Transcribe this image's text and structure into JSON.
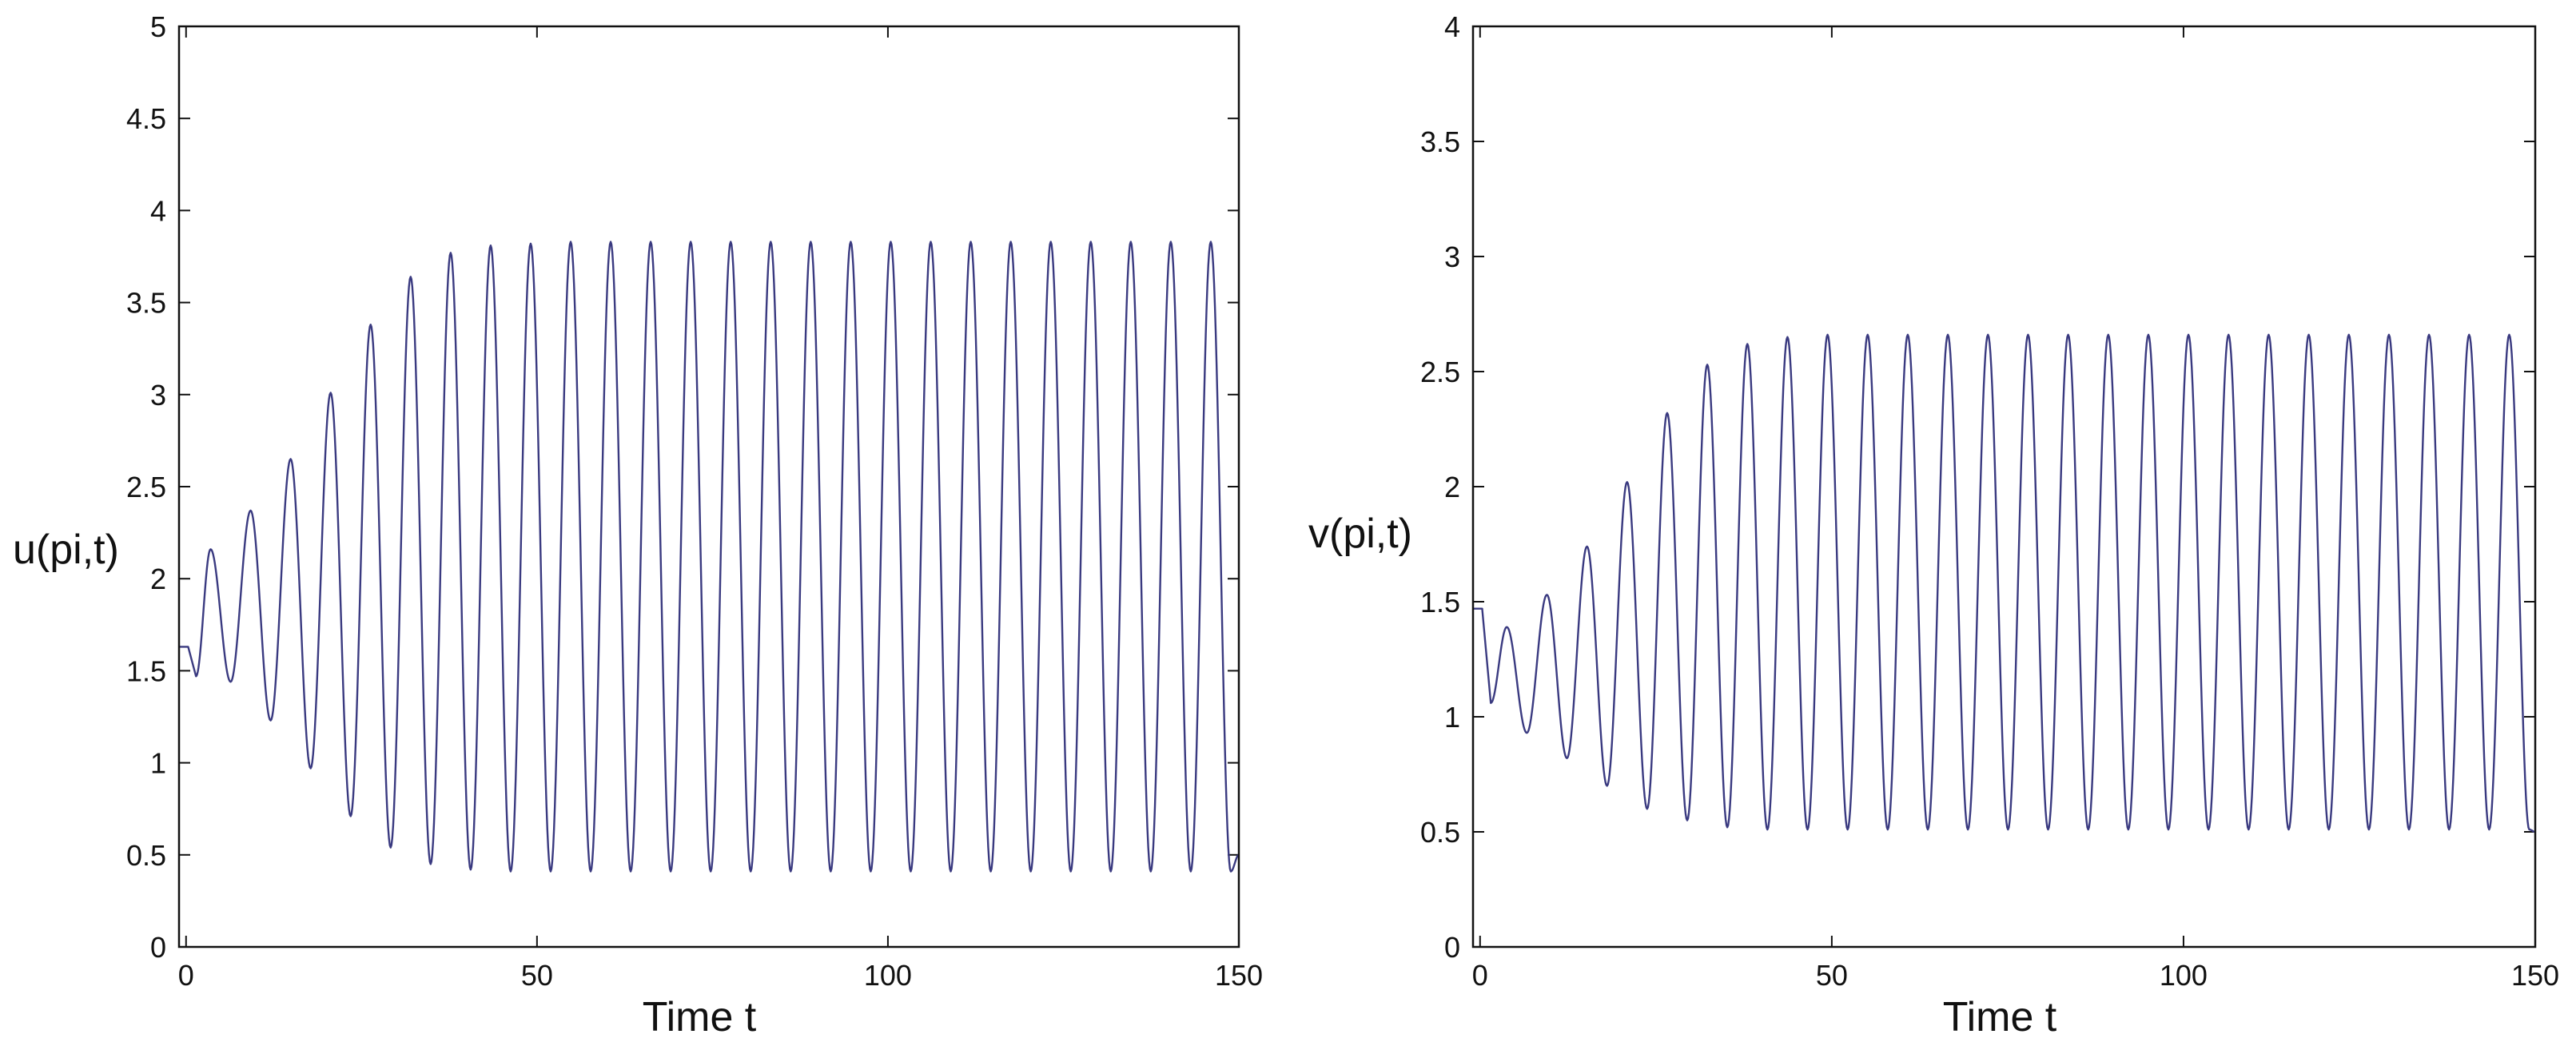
{
  "chart_data": [
    {
      "type": "line",
      "xlabel": "Time t",
      "ylabel": "u(pi,t)",
      "xlim": [
        -1,
        150
      ],
      "ylim": [
        0,
        5
      ],
      "xticks": [
        0,
        50,
        100,
        150
      ],
      "xtick_labels": [
        "0",
        "50",
        "100",
        "150"
      ],
      "yticks": [
        0,
        0.5,
        1,
        1.5,
        2,
        2.5,
        3,
        3.5,
        4,
        4.5,
        5
      ],
      "ytick_labels": [
        "0",
        "0.5",
        "1",
        "1.5",
        "2",
        "2.5",
        "3",
        "3.5",
        "4",
        "4.5",
        "5"
      ],
      "grid": false,
      "legend": "none",
      "line_color": "#3a3a80",
      "initial_value": 1.63,
      "initial_flat_until": 0.3,
      "period": 5.7,
      "first_peak_t": 3.5,
      "peaks": [
        2.16,
        2.37,
        2.65,
        3.01,
        3.38,
        3.64,
        3.77,
        3.81,
        3.82,
        3.83,
        3.83,
        3.83,
        3.83,
        3.83,
        3.83,
        3.83,
        3.83,
        3.83,
        3.83,
        3.83,
        3.83,
        3.83,
        3.83,
        3.83,
        3.83,
        3.83
      ],
      "troughs": [
        1.47,
        1.44,
        1.23,
        0.97,
        0.71,
        0.54,
        0.45,
        0.42,
        0.41,
        0.41,
        0.41,
        0.41,
        0.41,
        0.41,
        0.41,
        0.41,
        0.41,
        0.41,
        0.41,
        0.41,
        0.41,
        0.41,
        0.41,
        0.41,
        0.41,
        0.41,
        0.41
      ],
      "end_value": 0.5
    },
    {
      "type": "line",
      "xlabel": "Time t",
      "ylabel": "v(pi,t)",
      "xlim": [
        -1,
        150
      ],
      "ylim": [
        0,
        4
      ],
      "xticks": [
        0,
        50,
        100,
        150
      ],
      "xtick_labels": [
        "0",
        "50",
        "100",
        "150"
      ],
      "yticks": [
        0,
        0.5,
        1,
        1.5,
        2,
        2.5,
        3,
        3.5,
        4
      ],
      "ytick_labels": [
        "0",
        "0.5",
        "1",
        "1.5",
        "2",
        "2.5",
        "3",
        "3.5",
        "4"
      ],
      "grid": false,
      "legend": "none",
      "line_color": "#3a3a80",
      "initial_value": 1.47,
      "initial_flat_until": 0.3,
      "period": 5.7,
      "first_peak_t": 3.8,
      "peaks": [
        1.39,
        1.53,
        1.74,
        2.02,
        2.32,
        2.53,
        2.62,
        2.65,
        2.66,
        2.66,
        2.66,
        2.66,
        2.66,
        2.66,
        2.66,
        2.66,
        2.66,
        2.66,
        2.66,
        2.66,
        2.66,
        2.66,
        2.66,
        2.66,
        2.66,
        2.66
      ],
      "troughs": [
        1.06,
        0.93,
        0.82,
        0.7,
        0.6,
        0.55,
        0.52,
        0.51,
        0.51,
        0.51,
        0.51,
        0.51,
        0.51,
        0.51,
        0.51,
        0.51,
        0.51,
        0.51,
        0.51,
        0.51,
        0.51,
        0.51,
        0.51,
        0.51,
        0.51,
        0.51,
        0.51
      ],
      "end_value": 0.5
    }
  ]
}
